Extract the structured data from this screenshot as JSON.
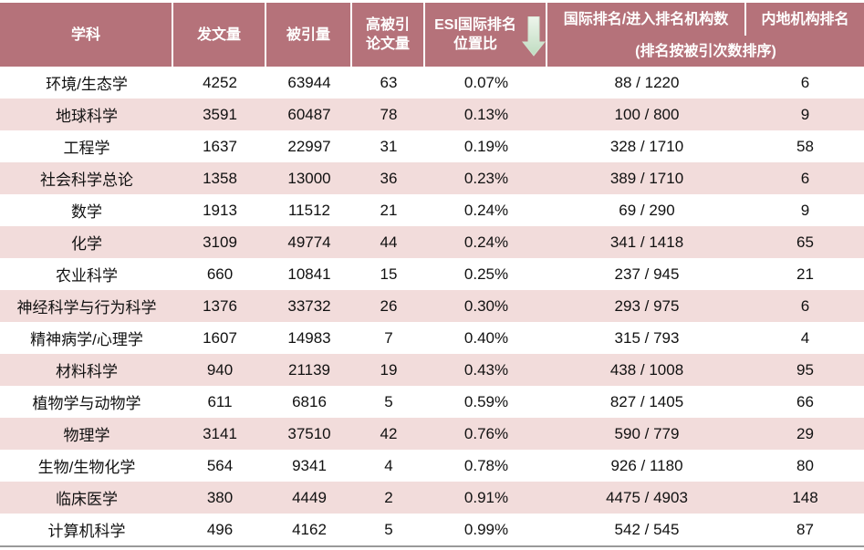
{
  "header": {
    "columns": [
      [
        "学科"
      ],
      [
        "发文量"
      ],
      [
        "被引量"
      ],
      [
        "高被引",
        "论文量"
      ],
      [
        "ESI国际排名",
        "位置比"
      ],
      [
        "国际排名/进入排名机构数"
      ],
      [
        "内地机构排名"
      ]
    ],
    "note": "(排名按被引次数排序)"
  },
  "table": {
    "rows": [
      [
        "环境/生态学",
        "4252",
        "63944",
        "63",
        "0.07%",
        "88 / 1220",
        "6"
      ],
      [
        "地球科学",
        "3591",
        "60487",
        "78",
        "0.13%",
        "100 / 800",
        "9"
      ],
      [
        "工程学",
        "1637",
        "22997",
        "31",
        "0.19%",
        "328 / 1710",
        "58"
      ],
      [
        "社会科学总论",
        "1358",
        "13000",
        "36",
        "0.23%",
        "389 / 1710",
        "6"
      ],
      [
        "数学",
        "1913",
        "11512",
        "21",
        "0.24%",
        "69 / 290",
        "9"
      ],
      [
        "化学",
        "3109",
        "49774",
        "44",
        "0.24%",
        "341 / 1418",
        "65"
      ],
      [
        "农业科学",
        "660",
        "10841",
        "15",
        "0.25%",
        "237 / 945",
        "21"
      ],
      [
        "神经科学与行为科学",
        "1376",
        "33732",
        "26",
        "0.30%",
        "293 / 975",
        "6"
      ],
      [
        "精神病学/心理学",
        "1607",
        "14983",
        "7",
        "0.40%",
        "315 / 793",
        "4"
      ],
      [
        "材料科学",
        "940",
        "21139",
        "19",
        "0.43%",
        "438 / 1008",
        "95"
      ],
      [
        "植物学与动物学",
        "611",
        "6816",
        "5",
        "0.59%",
        "827 / 1405",
        "66"
      ],
      [
        "物理学",
        "3141",
        "37510",
        "42",
        "0.76%",
        "590 / 779",
        "29"
      ],
      [
        "生物/生物化学",
        "564",
        "9341",
        "4",
        "0.78%",
        "926 / 1180",
        "80"
      ],
      [
        "临床医学",
        "380",
        "4449",
        "2",
        "0.91%",
        "4475 / 4903",
        "148"
      ],
      [
        "计算机科学",
        "496",
        "4162",
        "5",
        "0.99%",
        "542 / 545",
        "87"
      ]
    ]
  }
}
